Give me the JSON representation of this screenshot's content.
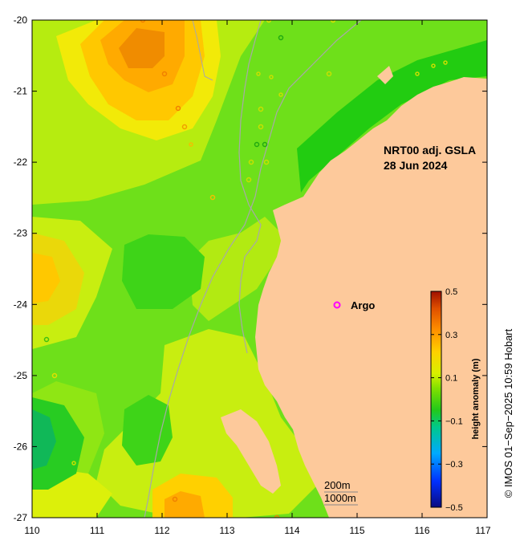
{
  "title_line1": "NRT00 adj. GSLA",
  "title_line2": "28 Jun 2024",
  "legend": {
    "argo_label": "Argo",
    "argo_color": "#ff00ff"
  },
  "depth_contours": [
    "200m",
    "1000m"
  ],
  "colorbar": {
    "label": "height anomaly (m)",
    "ticks": [
      "0.5",
      "0.3",
      "0.1",
      "−0.1",
      "−0.3",
      "−0.5"
    ],
    "min": -0.5,
    "max": 0.5
  },
  "axes": {
    "lat_ticks": [
      "-20",
      "-21",
      "-22",
      "-23",
      "-24",
      "-25",
      "-26",
      "-27"
    ],
    "lon_ticks": [
      "110",
      "111",
      "112",
      "113",
      "114",
      "115",
      "116",
      "117"
    ]
  },
  "credit": "© IMOS 01−Sep−2025 10:59 Hobart",
  "colors": {
    "land": "#fdc99b",
    "shelf_green": "#22cc11",
    "frame": "#000000"
  }
}
